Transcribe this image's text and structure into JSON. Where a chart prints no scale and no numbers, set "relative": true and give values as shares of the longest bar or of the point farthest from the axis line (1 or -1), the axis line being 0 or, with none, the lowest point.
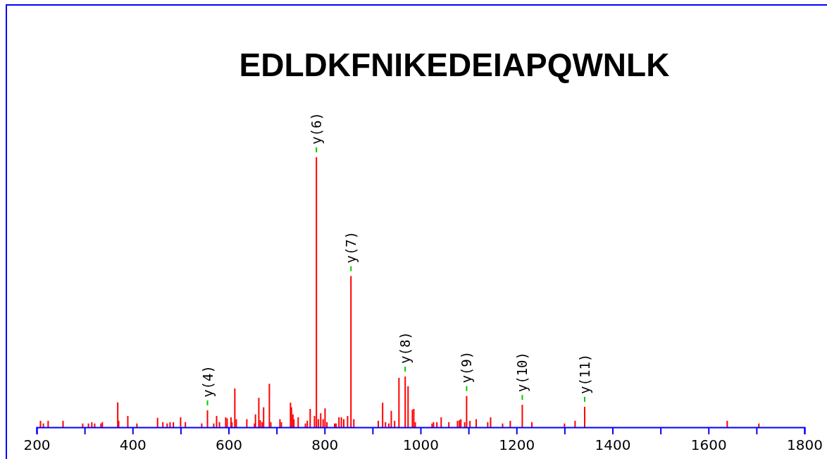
{
  "chart_data": {
    "type": "bar",
    "title": "EDLDKFNIKEDEIAPQWNLK",
    "relative": true,
    "color": "#ff0000",
    "x": [
      208,
      214,
      224,
      255,
      296,
      308,
      315,
      321,
      334,
      337,
      369,
      371,
      390,
      409,
      452,
      463,
      472,
      478,
      485,
      500,
      510,
      544,
      556,
      569,
      575,
      581,
      594,
      597,
      605,
      607,
      613,
      616,
      638,
      654,
      656,
      663,
      666,
      670,
      673,
      685,
      688,
      707,
      710,
      729,
      731,
      734,
      736,
      745,
      760,
      764,
      770,
      779,
      783,
      787,
      792,
      797,
      801,
      805,
      821,
      824,
      830,
      835,
      840,
      848,
      855,
      861,
      912,
      921,
      927,
      934,
      939,
      946,
      955,
      968,
      974,
      983,
      986,
      989,
      1024,
      1027,
      1034,
      1043,
      1059,
      1077,
      1081,
      1084,
      1092,
      1096,
      1103,
      1116,
      1140,
      1146,
      1171,
      1187,
      1212,
      1232,
      1300,
      1322,
      1342,
      1639,
      1705
    ],
    "values": [
      0.024,
      0.014,
      0.024,
      0.024,
      0.014,
      0.014,
      0.019,
      0.014,
      0.014,
      0.019,
      0.092,
      0.024,
      0.042,
      0.014,
      0.035,
      0.019,
      0.014,
      0.019,
      0.019,
      0.037,
      0.019,
      0.014,
      0.063,
      0.014,
      0.042,
      0.019,
      0.037,
      0.033,
      0.037,
      0.019,
      0.144,
      0.03,
      0.03,
      0.014,
      0.048,
      0.109,
      0.026,
      0.019,
      0.074,
      0.161,
      0.019,
      0.03,
      0.019,
      0.091,
      0.074,
      0.048,
      0.03,
      0.037,
      0.014,
      0.024,
      0.068,
      0.042,
      1,
      0.03,
      0.052,
      0.03,
      0.07,
      0.019,
      0.014,
      0.014,
      0.037,
      0.037,
      0.03,
      0.042,
      0.56,
      0.03,
      0.024,
      0.091,
      0.019,
      0.014,
      0.061,
      0.024,
      0.183,
      0.188,
      0.152,
      0.065,
      0.068,
      0.019,
      0.014,
      0.019,
      0.019,
      0.037,
      0.019,
      0.024,
      0.026,
      0.03,
      0.019,
      0.116,
      0.024,
      0.03,
      0.019,
      0.037,
      0.014,
      0.024,
      0.083,
      0.019,
      0.014,
      0.024,
      0.076,
      0.024,
      0.014
    ],
    "xlim": [
      200,
      1800
    ],
    "xticks": [
      200,
      {
        "value": 300,
        "label": null
      },
      400,
      {
        "value": 500,
        "label": null
      },
      600,
      {
        "value": 700,
        "label": null
      },
      800,
      {
        "value": 900,
        "label": null
      },
      1000,
      {
        "value": 1100,
        "label": null
      },
      1200,
      {
        "value": 1300,
        "label": null
      },
      1400,
      {
        "value": 1500,
        "label": null
      },
      1600,
      {
        "value": 1700,
        "label": null
      },
      1800
    ],
    "annotations": [
      {
        "text": "y(4)",
        "x": 556,
        "y": 0.063
      },
      {
        "text": "y(6)",
        "x": 783,
        "y": 1
      },
      {
        "text": "y(7)",
        "x": 855,
        "y": 0.56
      },
      {
        "text": "y(8)",
        "x": 968,
        "y": 0.188
      },
      {
        "text": "y(9)",
        "x": 1096,
        "y": 0.116
      },
      {
        "text": "y(10)",
        "x": 1212,
        "y": 0.083
      },
      {
        "text": "y(11)",
        "x": 1342,
        "y": 0.076
      }
    ]
  }
}
